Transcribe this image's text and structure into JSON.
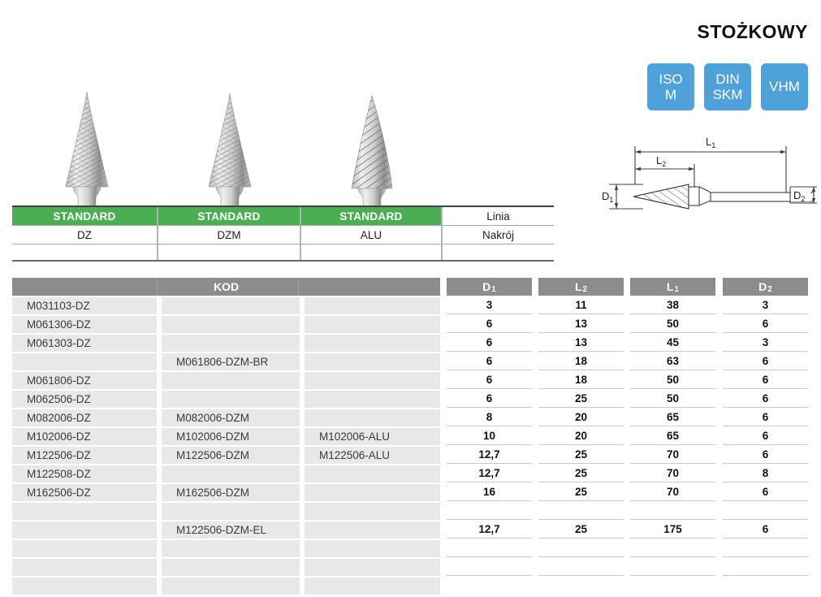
{
  "title": "STOŻKOWY",
  "badges": [
    {
      "lines": [
        "ISO",
        "M"
      ]
    },
    {
      "lines": [
        "DIN",
        "SKM"
      ]
    },
    {
      "lines": [
        "VHM"
      ]
    }
  ],
  "colors": {
    "accent_green": "#4CAE53",
    "accent_blue": "#4FA2D9",
    "header_gray": "#8C8C8C",
    "cell_gray": "#E8E8E8"
  },
  "drawing": {
    "labels": {
      "l1": {
        "base": "L",
        "sub": "1"
      },
      "l2": {
        "base": "L",
        "sub": "2"
      },
      "d1": {
        "base": "D",
        "sub": "1"
      },
      "d2": {
        "base": "D",
        "sub": "2"
      }
    }
  },
  "top_table": {
    "columns": [
      {
        "header": "STANDARD",
        "variant": "DZ"
      },
      {
        "header": "STANDARD",
        "variant": "DZM"
      },
      {
        "header": "STANDARD",
        "variant": "ALU"
      }
    ],
    "meta_header": "Linia",
    "meta_row_label": "Nakrój"
  },
  "spec_table": {
    "kod_label": "KOD",
    "dim_headers": [
      {
        "base": "D",
        "sub": "1"
      },
      {
        "base": "L",
        "sub": "2"
      },
      {
        "base": "L",
        "sub": "1"
      },
      {
        "base": "D",
        "sub": "2"
      }
    ],
    "rows": [
      {
        "codes": [
          "M031103-DZ",
          "",
          ""
        ],
        "values": [
          "3",
          "11",
          "38",
          "3"
        ]
      },
      {
        "codes": [
          "M061306-DZ",
          "",
          ""
        ],
        "values": [
          "6",
          "13",
          "50",
          "6"
        ]
      },
      {
        "codes": [
          "M061303-DZ",
          "",
          ""
        ],
        "values": [
          "6",
          "13",
          "45",
          "3"
        ]
      },
      {
        "codes": [
          "",
          "M061806-DZM-BR",
          ""
        ],
        "values": [
          "6",
          "18",
          "63",
          "6"
        ]
      },
      {
        "codes": [
          "M061806-DZ",
          "",
          ""
        ],
        "values": [
          "6",
          "18",
          "50",
          "6"
        ]
      },
      {
        "codes": [
          "M062506-DZ",
          "",
          ""
        ],
        "values": [
          "6",
          "25",
          "50",
          "6"
        ]
      },
      {
        "codes": [
          "M082006-DZ",
          "M082006-DZM",
          ""
        ],
        "values": [
          "8",
          "20",
          "65",
          "6"
        ]
      },
      {
        "codes": [
          "M102006-DZ",
          "M102006-DZM",
          "M102006-ALU"
        ],
        "values": [
          "10",
          "20",
          "65",
          "6"
        ]
      },
      {
        "codes": [
          "M122506-DZ",
          "M122506-DZM",
          "M122506-ALU"
        ],
        "values": [
          "12,7",
          "25",
          "70",
          "6"
        ]
      },
      {
        "codes": [
          "M122508-DZ",
          "",
          ""
        ],
        "values": [
          "12,7",
          "25",
          "70",
          "8"
        ]
      },
      {
        "codes": [
          "M162506-DZ",
          "M162506-DZM",
          ""
        ],
        "values": [
          "16",
          "25",
          "70",
          "6"
        ]
      },
      {
        "codes": [
          "",
          "",
          ""
        ],
        "values": [
          "",
          "",
          "",
          ""
        ]
      },
      {
        "codes": [
          "",
          "M122506-DZM-EL",
          ""
        ],
        "values": [
          "12,7",
          "25",
          "175",
          "6"
        ]
      },
      {
        "codes": [
          "",
          "",
          ""
        ],
        "values": [
          "",
          "",
          "",
          ""
        ]
      },
      {
        "codes": [
          "",
          "",
          ""
        ],
        "values": [
          "",
          "",
          "",
          ""
        ]
      },
      {
        "codes": [
          "",
          "",
          ""
        ],
        "values": [
          "",
          "",
          "",
          ""
        ]
      }
    ]
  }
}
